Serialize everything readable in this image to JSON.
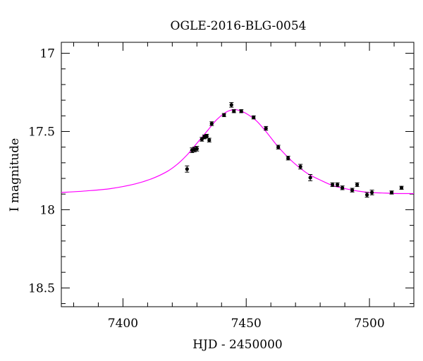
{
  "chart_data": {
    "type": "scatter",
    "title": "OGLE-2016-BLG-0054",
    "xlabel": "HJD - 2450000",
    "ylabel": "I magnitude",
    "xlim": [
      7375,
      7518
    ],
    "ylim": [
      18.62,
      16.93
    ],
    "y_inverted": true,
    "grid": false,
    "x_ticks": [
      7400,
      7450,
      7500
    ],
    "x_tick_labels": [
      "7400",
      "7450",
      "7500"
    ],
    "y_ticks": [
      17,
      17.5,
      18,
      18.5
    ],
    "y_tick_labels": [
      "17",
      "17.5",
      "18",
      "18.5"
    ],
    "series": [
      {
        "kind": "points",
        "color": "#000000",
        "points": [
          {
            "x": 7426,
            "y": 17.74,
            "err": 0.02
          },
          {
            "x": 7428,
            "y": 17.62,
            "err": 0.015
          },
          {
            "x": 7429,
            "y": 17.615,
            "err": 0.015
          },
          {
            "x": 7430,
            "y": 17.61,
            "err": 0.015
          },
          {
            "x": 7432,
            "y": 17.55,
            "err": 0.012
          },
          {
            "x": 7433,
            "y": 17.535,
            "err": 0.012
          },
          {
            "x": 7434,
            "y": 17.53,
            "err": 0.012
          },
          {
            "x": 7435,
            "y": 17.555,
            "err": 0.012
          },
          {
            "x": 7436,
            "y": 17.45,
            "err": 0.012
          },
          {
            "x": 7441,
            "y": 17.395,
            "err": 0.01
          },
          {
            "x": 7444,
            "y": 17.33,
            "err": 0.015
          },
          {
            "x": 7445,
            "y": 17.37,
            "err": 0.01
          },
          {
            "x": 7448,
            "y": 17.37,
            "err": 0.01
          },
          {
            "x": 7453,
            "y": 17.41,
            "err": 0.01
          },
          {
            "x": 7458,
            "y": 17.48,
            "err": 0.012
          },
          {
            "x": 7463,
            "y": 17.6,
            "err": 0.012
          },
          {
            "x": 7467,
            "y": 17.67,
            "err": 0.012
          },
          {
            "x": 7472,
            "y": 17.725,
            "err": 0.015
          },
          {
            "x": 7476,
            "y": 17.795,
            "err": 0.02
          },
          {
            "x": 7485,
            "y": 17.84,
            "err": 0.012
          },
          {
            "x": 7487,
            "y": 17.84,
            "err": 0.012
          },
          {
            "x": 7489,
            "y": 17.86,
            "err": 0.012
          },
          {
            "x": 7493,
            "y": 17.875,
            "err": 0.012
          },
          {
            "x": 7495,
            "y": 17.84,
            "err": 0.012
          },
          {
            "x": 7499,
            "y": 17.905,
            "err": 0.015
          },
          {
            "x": 7501,
            "y": 17.89,
            "err": 0.015
          },
          {
            "x": 7509,
            "y": 17.89,
            "err": 0.01
          },
          {
            "x": 7513,
            "y": 17.86,
            "err": 0.01
          }
        ]
      },
      {
        "kind": "line",
        "color": "#ff00ff",
        "x": [
          7375,
          7385,
          7395,
          7405,
          7412,
          7418,
          7422,
          7426,
          7430,
          7434,
          7438,
          7442,
          7445,
          7447,
          7450,
          7454,
          7458,
          7462,
          7466,
          7470,
          7475,
          7480,
          7485,
          7490,
          7495,
          7500,
          7505,
          7510,
          7518
        ],
        "y": [
          17.89,
          17.88,
          17.865,
          17.835,
          17.8,
          17.755,
          17.71,
          17.65,
          17.575,
          17.5,
          17.425,
          17.375,
          17.36,
          17.365,
          17.385,
          17.43,
          17.5,
          17.58,
          17.65,
          17.71,
          17.77,
          17.81,
          17.845,
          17.865,
          17.88,
          17.89,
          17.893,
          17.896,
          17.897
        ]
      }
    ]
  }
}
